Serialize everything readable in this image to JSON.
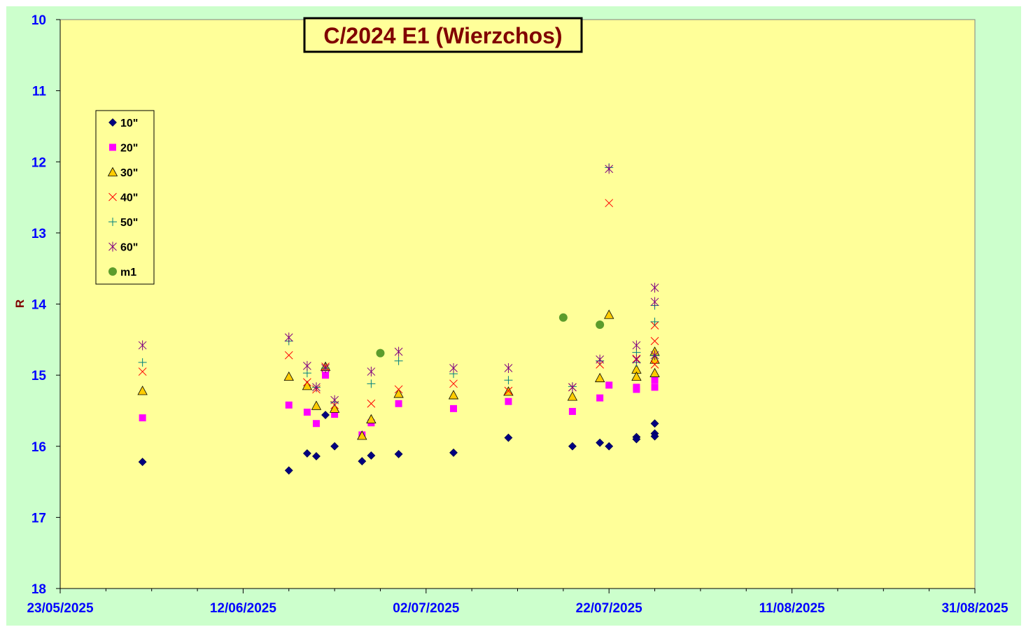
{
  "colors": {
    "page_bg": "#CCFFCC",
    "plot_bg": "#FFFF99",
    "axis_tick_label": "#0000FF",
    "axis_title": "#800000",
    "title_text": "#800000",
    "grid": "none"
  },
  "chart_data": {
    "type": "scatter",
    "title": "C/2024 E1 (Wierzchos)",
    "xlabel": "",
    "ylabel": "R",
    "x_axis_type": "date",
    "xlim": [
      "2025-05-23",
      "2025-08-31"
    ],
    "x_tick_labels": [
      "23/05/2025",
      "12/06/2025",
      "02/07/2025",
      "22/07/2025",
      "11/08/2025",
      "31/08/2025"
    ],
    "ylim": [
      10,
      18
    ],
    "y_inverted": true,
    "y_tick_labels": [
      "10",
      "11",
      "12",
      "13",
      "14",
      "15",
      "16",
      "17",
      "18"
    ],
    "grid": false,
    "legend_position": "left",
    "series": [
      {
        "name": "10\"",
        "marker": "diamond",
        "color": "#000080",
        "points": [
          [
            "2025-06-01",
            16.22
          ],
          [
            "2025-06-17",
            16.34
          ],
          [
            "2025-06-19",
            16.1
          ],
          [
            "2025-06-20",
            16.14
          ],
          [
            "2025-06-21",
            15.56
          ],
          [
            "2025-06-22",
            16.0
          ],
          [
            "2025-06-25",
            16.21
          ],
          [
            "2025-06-26",
            16.13
          ],
          [
            "2025-06-29",
            16.11
          ],
          [
            "2025-07-05",
            16.09
          ],
          [
            "2025-07-11",
            15.88
          ],
          [
            "2025-07-18",
            16.0
          ],
          [
            "2025-07-21",
            15.95
          ],
          [
            "2025-07-22",
            16.0
          ],
          [
            "2025-07-25",
            15.87
          ],
          [
            "2025-07-25",
            15.9
          ],
          [
            "2025-07-27",
            15.68
          ],
          [
            "2025-07-27",
            15.82
          ],
          [
            "2025-07-27",
            15.86
          ]
        ]
      },
      {
        "name": "20\"",
        "marker": "square",
        "color": "#FF00FF",
        "points": [
          [
            "2025-06-01",
            15.6
          ],
          [
            "2025-06-17",
            15.42
          ],
          [
            "2025-06-19",
            15.52
          ],
          [
            "2025-06-20",
            15.68
          ],
          [
            "2025-06-21",
            15.0
          ],
          [
            "2025-06-22",
            15.55
          ],
          [
            "2025-06-25",
            15.84
          ],
          [
            "2025-06-26",
            15.67
          ],
          [
            "2025-06-29",
            15.4
          ],
          [
            "2025-07-05",
            15.47
          ],
          [
            "2025-07-11",
            15.37
          ],
          [
            "2025-07-18",
            15.51
          ],
          [
            "2025-07-21",
            15.32
          ],
          [
            "2025-07-22",
            15.14
          ],
          [
            "2025-07-25",
            15.17
          ],
          [
            "2025-07-25",
            15.2
          ],
          [
            "2025-07-27",
            15.17
          ],
          [
            "2025-07-27",
            15.07
          ]
        ]
      },
      {
        "name": "30\"",
        "marker": "triangle",
        "color": "#FFCC00",
        "points": [
          [
            "2025-06-01",
            15.22
          ],
          [
            "2025-06-17",
            15.02
          ],
          [
            "2025-06-19",
            15.15
          ],
          [
            "2025-06-20",
            15.43
          ],
          [
            "2025-06-21",
            14.88
          ],
          [
            "2025-06-22",
            15.47
          ],
          [
            "2025-06-25",
            15.85
          ],
          [
            "2025-06-26",
            15.62
          ],
          [
            "2025-06-29",
            15.26
          ],
          [
            "2025-07-05",
            15.28
          ],
          [
            "2025-07-11",
            15.23
          ],
          [
            "2025-07-18",
            15.3
          ],
          [
            "2025-07-21",
            15.04
          ],
          [
            "2025-07-22",
            14.15
          ],
          [
            "2025-07-25",
            14.92
          ],
          [
            "2025-07-25",
            15.02
          ],
          [
            "2025-07-27",
            14.97
          ],
          [
            "2025-07-27",
            14.78
          ],
          [
            "2025-07-27",
            14.67
          ]
        ]
      },
      {
        "name": "40\"",
        "marker": "x",
        "color": "#FF0000",
        "points": [
          [
            "2025-06-01",
            14.95
          ],
          [
            "2025-06-17",
            14.72
          ],
          [
            "2025-06-19",
            15.1
          ],
          [
            "2025-06-20",
            15.2
          ],
          [
            "2025-06-21",
            14.88
          ],
          [
            "2025-06-22",
            15.42
          ],
          [
            "2025-06-26",
            15.4
          ],
          [
            "2025-06-29",
            15.2
          ],
          [
            "2025-07-05",
            15.12
          ],
          [
            "2025-07-11",
            15.22
          ],
          [
            "2025-07-18",
            15.17
          ],
          [
            "2025-07-21",
            14.85
          ],
          [
            "2025-07-22",
            12.58
          ],
          [
            "2025-07-25",
            14.77
          ],
          [
            "2025-07-27",
            14.52
          ],
          [
            "2025-07-27",
            14.3
          ],
          [
            "2025-07-27",
            14.85
          ]
        ]
      },
      {
        "name": "50\"",
        "marker": "plus",
        "color": "#008080",
        "points": [
          [
            "2025-06-01",
            14.82
          ],
          [
            "2025-06-17",
            14.52
          ],
          [
            "2025-06-19",
            14.97
          ],
          [
            "2025-06-20",
            15.17
          ],
          [
            "2025-06-21",
            14.9
          ],
          [
            "2025-06-22",
            15.38
          ],
          [
            "2025-06-26",
            15.12
          ],
          [
            "2025-06-29",
            14.8
          ],
          [
            "2025-07-05",
            14.98
          ],
          [
            "2025-07-11",
            15.07
          ],
          [
            "2025-07-18",
            15.16
          ],
          [
            "2025-07-21",
            14.8
          ],
          [
            "2025-07-22",
            12.08
          ],
          [
            "2025-07-25",
            14.68
          ],
          [
            "2025-07-25",
            14.82
          ],
          [
            "2025-07-27",
            14.25
          ],
          [
            "2025-07-27",
            14.02
          ],
          [
            "2025-07-27",
            14.72
          ]
        ]
      },
      {
        "name": "60\"",
        "marker": "star",
        "color": "#800080",
        "points": [
          [
            "2025-06-01",
            14.58
          ],
          [
            "2025-06-17",
            14.47
          ],
          [
            "2025-06-19",
            14.87
          ],
          [
            "2025-06-20",
            15.17
          ],
          [
            "2025-06-21",
            14.9
          ],
          [
            "2025-06-22",
            15.35
          ],
          [
            "2025-06-26",
            14.95
          ],
          [
            "2025-06-29",
            14.67
          ],
          [
            "2025-07-05",
            14.9
          ],
          [
            "2025-07-11",
            14.9
          ],
          [
            "2025-07-18",
            15.17
          ],
          [
            "2025-07-21",
            14.78
          ],
          [
            "2025-07-22",
            12.1
          ],
          [
            "2025-07-25",
            14.58
          ],
          [
            "2025-07-25",
            14.78
          ],
          [
            "2025-07-27",
            13.77
          ],
          [
            "2025-07-27",
            13.97
          ],
          [
            "2025-07-27",
            14.72
          ]
        ]
      },
      {
        "name": "m1",
        "marker": "circle",
        "color": "#5C9C2C",
        "points": [
          [
            "2025-06-27",
            14.69
          ],
          [
            "2025-07-17",
            14.19
          ],
          [
            "2025-07-21",
            14.29
          ]
        ]
      }
    ]
  }
}
